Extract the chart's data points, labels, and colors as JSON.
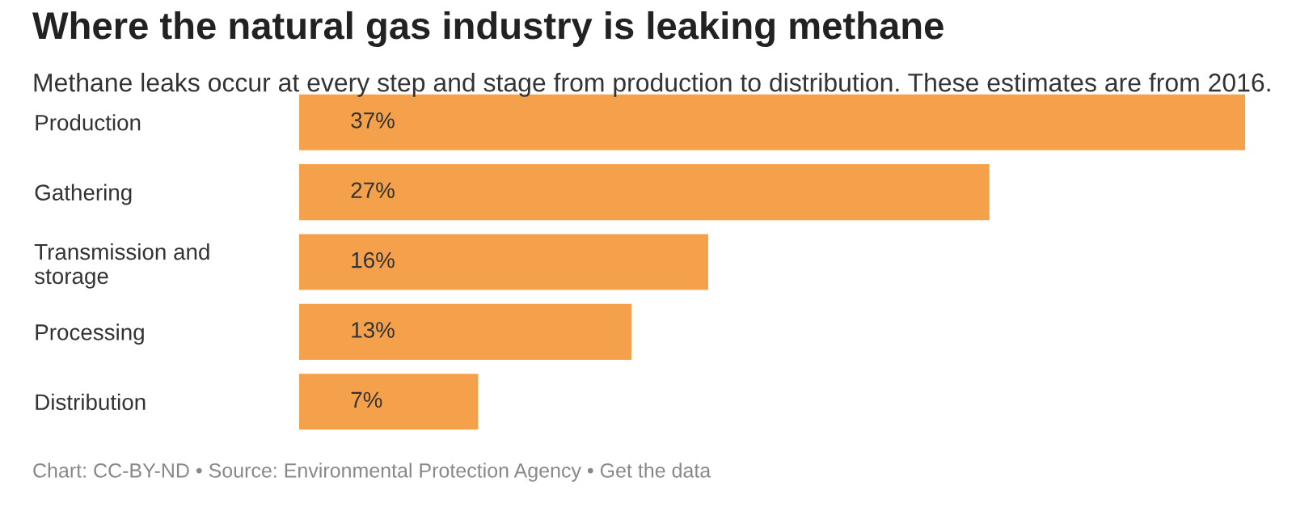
{
  "chart_data": {
    "type": "bar",
    "orientation": "horizontal",
    "title": "Where the natural gas industry is leaking methane",
    "subtitle": "Methane leaks occur at every step and stage from production to distribution. These estimates are from 2016.",
    "categories": [
      "Production",
      "Gathering",
      "Transmission and\nstorage",
      "Processing",
      "Distribution"
    ],
    "values": [
      37,
      27,
      16,
      13,
      7
    ],
    "value_labels": [
      "37%",
      "27%",
      "16%",
      "13%",
      "7%"
    ],
    "color": "#f5a14b",
    "annotations": [
      "Chart: CC-BY-ND • Source: Environmental Protection Agency • Get the data"
    ]
  }
}
